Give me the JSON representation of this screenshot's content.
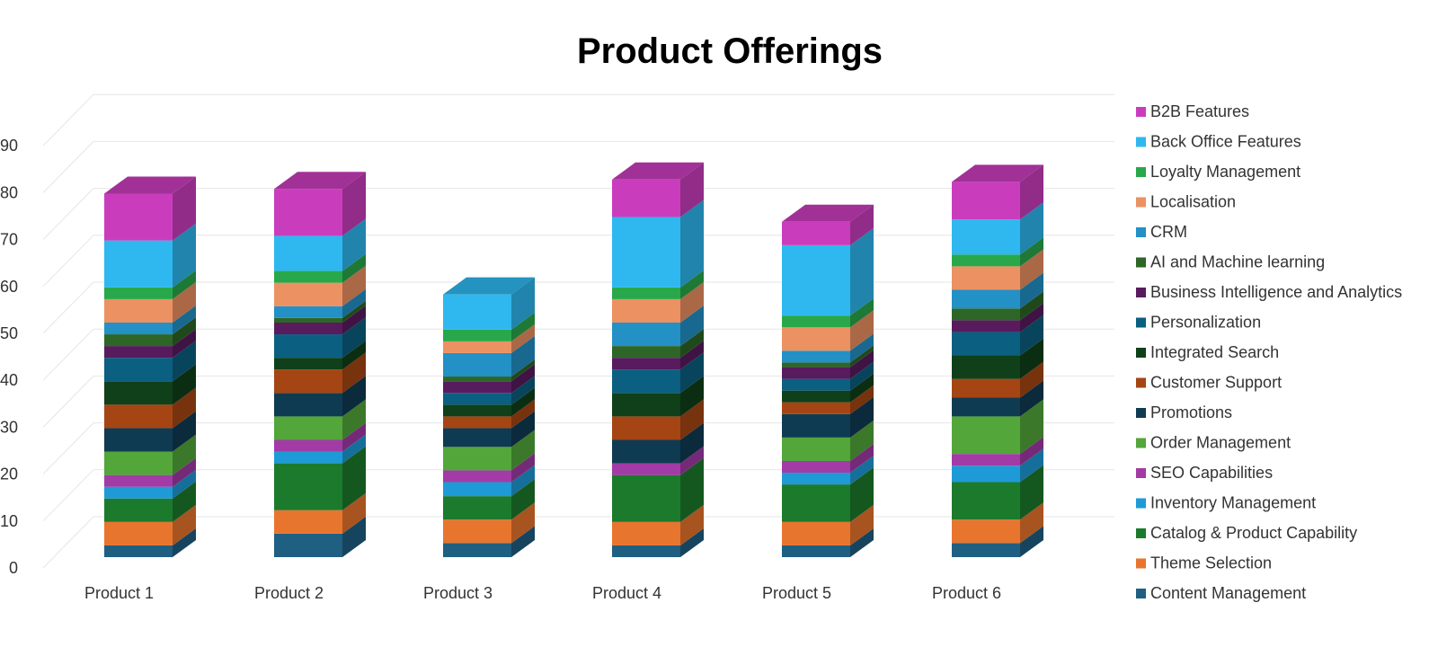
{
  "chart_data": {
    "type": "bar",
    "stacked": true,
    "three_d": true,
    "title": "Product Offerings",
    "categories": [
      "Product 1",
      "Product 2",
      "Product 3",
      "Product 4",
      "Product 5",
      "Product 6"
    ],
    "yticks": [
      "0",
      "10",
      "20",
      "30",
      "40",
      "50",
      "60",
      "70",
      "80",
      "90"
    ],
    "ylim": [
      0,
      90
    ],
    "grid": true,
    "legend_position": "right",
    "series": [
      {
        "name": "Content Management",
        "color": "#1e5f82",
        "values": [
          2.5,
          5,
          3,
          2.5,
          2.5,
          3
        ]
      },
      {
        "name": "Theme Selection",
        "color": "#e8752e",
        "values": [
          5,
          5,
          5,
          5,
          5,
          5
        ]
      },
      {
        "name": "Catalog & Product Capability",
        "color": "#1c7a2d",
        "values": [
          5,
          10,
          5,
          10,
          8,
          8
        ]
      },
      {
        "name": "Inventory Management",
        "color": "#1e9ad6",
        "values": [
          2.5,
          2.5,
          3,
          0,
          2.5,
          3.5
        ]
      },
      {
        "name": "SEO Capabilities",
        "color": "#a23ba6",
        "values": [
          2.5,
          2.5,
          2.5,
          2.5,
          2.5,
          2.5
        ]
      },
      {
        "name": "Order Management",
        "color": "#52a63a",
        "values": [
          5,
          5,
          5,
          0,
          5,
          8
        ]
      },
      {
        "name": "Promotions",
        "color": "#0f3b52",
        "values": [
          5,
          5,
          4,
          5,
          5,
          4
        ]
      },
      {
        "name": "Customer Support",
        "color": "#a54514",
        "values": [
          5,
          5,
          2.5,
          5,
          2.5,
          4
        ]
      },
      {
        "name": "Integrated Search",
        "color": "#0f4019",
        "values": [
          5,
          2.5,
          2.5,
          5,
          2.5,
          5
        ]
      },
      {
        "name": "Personalization",
        "color": "#0b5f80",
        "values": [
          5,
          5,
          2.5,
          5,
          2.5,
          5
        ]
      },
      {
        "name": "Business Intelligence and Analytics",
        "color": "#581b5e",
        "values": [
          2.5,
          2.5,
          2.5,
          2.5,
          2.5,
          2.5
        ]
      },
      {
        "name": "AI and Machine learning",
        "color": "#2d6626",
        "values": [
          2.5,
          1,
          1,
          2.5,
          1,
          2.5
        ]
      },
      {
        "name": "CRM",
        "color": "#2390c6",
        "values": [
          2.5,
          2.5,
          5,
          5,
          2.5,
          4
        ]
      },
      {
        "name": "Localisation",
        "color": "#ec9162",
        "values": [
          5,
          5,
          2.5,
          5,
          5,
          5
        ]
      },
      {
        "name": "Loyalty Management",
        "color": "#28a84a",
        "values": [
          2.5,
          2.5,
          2.5,
          2.5,
          2.5,
          2.5
        ]
      },
      {
        "name": "Back Office Features",
        "color": "#2eb8ef",
        "values": [
          10,
          7.5,
          7.5,
          15,
          15,
          7.5
        ]
      },
      {
        "name": "B2B Features",
        "color": "#c93dbd",
        "values": [
          10,
          10,
          0,
          8,
          5,
          8
        ]
      }
    ]
  }
}
